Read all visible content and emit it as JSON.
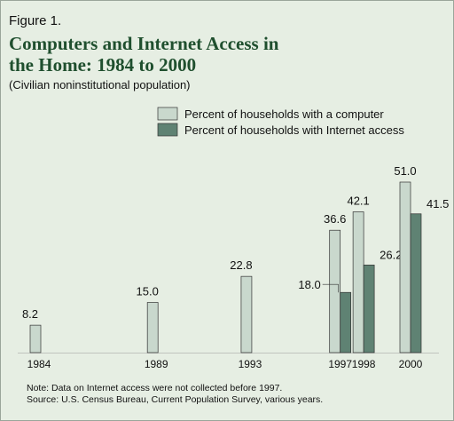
{
  "chart_data": {
    "type": "bar",
    "figure_label": "Figure 1.",
    "title": [
      "Computers and Internet Access in",
      "the Home:  1984 to 2000"
    ],
    "subtitle": "(Civilian noninstitutional population)",
    "x": [
      1984,
      1989,
      1993,
      1997,
      1998,
      2000
    ],
    "series": [
      {
        "name": "Percent of households with a computer",
        "color": "#c9d8cd",
        "values": [
          8.2,
          15.0,
          22.8,
          36.6,
          42.1,
          51.0
        ],
        "value_labels": [
          "8.2",
          "15.0",
          "22.8",
          "36.6",
          "42.1",
          "51.0"
        ]
      },
      {
        "name": "Percent of households with Internet access",
        "color": "#5f8273",
        "values": [
          null,
          null,
          null,
          18.0,
          26.2,
          41.5
        ],
        "value_labels": [
          null,
          null,
          null,
          "18.0",
          "26.2",
          "41.5"
        ]
      }
    ],
    "notes": [
      "Note:  Data on Internet access were not collected before 1997.",
      "Source: U.S. Census Bureau, Current Population Survey, various years."
    ]
  }
}
